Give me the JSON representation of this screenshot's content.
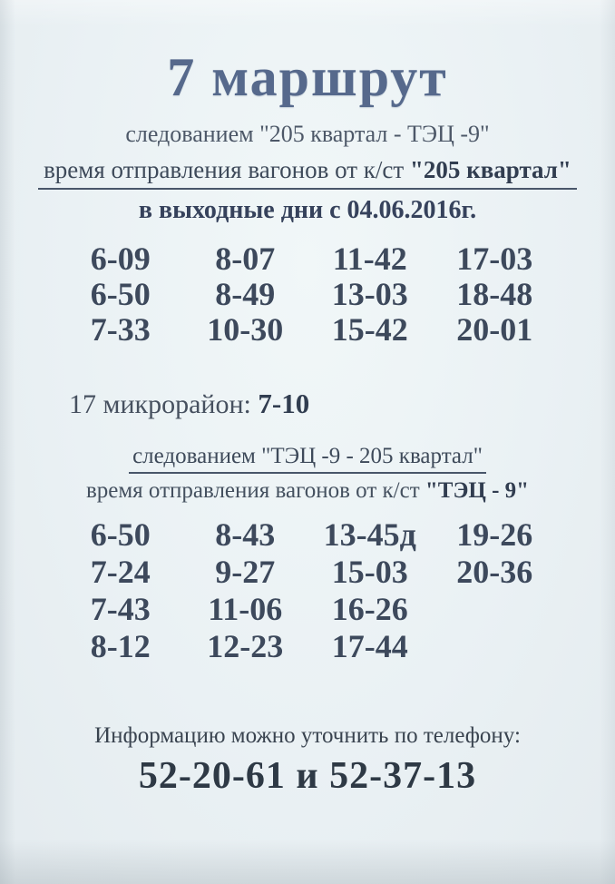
{
  "poster": {
    "title": "7 маршрут",
    "section1": {
      "route_line": "следованием \"205 квартал - ТЭЦ -9\"",
      "departure_prefix": "время отправления вагонов от к/ст",
      "departure_terminal": "\"205 квартал\"",
      "validity_line": "в выходные дни с 04.06.2016г.",
      "times": [
        [
          "6-09",
          "8-07",
          "11-42",
          "17-03"
        ],
        [
          "6-50",
          "8-49",
          "13-03",
          "18-48"
        ],
        [
          "7-33",
          "10-30",
          "15-42",
          "20-01"
        ]
      ]
    },
    "micro_district": {
      "label": "17 микрорайон:",
      "time": "7-10"
    },
    "section2": {
      "route_line": "следованием \"ТЭЦ -9 - 205 квартал\"",
      "departure_prefix": "время отправления вагонов от к/ст",
      "departure_terminal": "\"ТЭЦ - 9\"",
      "times": [
        [
          "6-50",
          "8-43",
          "13-45д",
          "19-26"
        ],
        [
          "7-24",
          "9-27",
          "15-03",
          "20-36"
        ],
        [
          "7-43",
          "11-06",
          "16-26",
          ""
        ],
        [
          "8-12",
          "12-23",
          "17-44",
          ""
        ]
      ]
    },
    "footer": {
      "note": "Информацию можно уточнить по телефону:",
      "phones": "52-20-61 и 52-37-13"
    }
  }
}
